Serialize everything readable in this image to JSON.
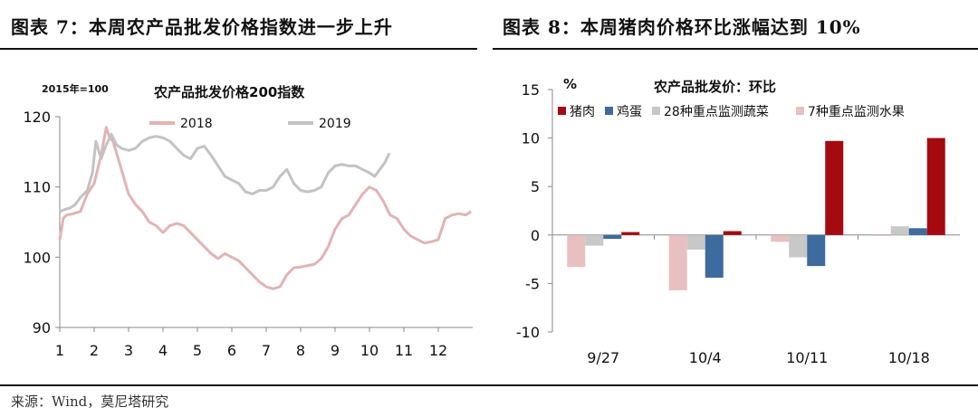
{
  "header": {
    "left_title": "图表 7：本周农产品批发价格指数进一步上升",
    "right_title": "图表 8：本周猪肉价格环比涨幅达到 10%"
  },
  "footer": {
    "source": "来源：Wind，莫尼塔研究"
  },
  "chart_data": [
    {
      "type": "line",
      "title": "农产品批发价格200指数",
      "base_note": "2015年=100",
      "ylim": [
        90,
        120
      ],
      "y_ticks": [
        90,
        100,
        110,
        120
      ],
      "x_ticks": [
        "1",
        "2",
        "3",
        "4",
        "5",
        "6",
        "7",
        "8",
        "9",
        "10",
        "11",
        "12"
      ],
      "xlim": [
        1,
        13
      ],
      "legend_position": "top",
      "colors": {
        "2018": "#e3b3b3",
        "2019": "#c3c3c3"
      },
      "series": [
        {
          "name": "2018",
          "x": [
            1.0,
            1.1,
            1.2,
            1.4,
            1.6,
            1.8,
            2.0,
            2.2,
            2.35,
            2.45,
            2.55,
            2.7,
            2.85,
            3.0,
            3.2,
            3.4,
            3.6,
            3.8,
            4.0,
            4.2,
            4.4,
            4.6,
            4.8,
            5.0,
            5.2,
            5.4,
            5.6,
            5.8,
            6.0,
            6.2,
            6.4,
            6.6,
            6.8,
            7.0,
            7.2,
            7.4,
            7.6,
            7.8,
            8.0,
            8.2,
            8.4,
            8.6,
            8.8,
            9.0,
            9.2,
            9.4,
            9.6,
            9.8,
            10.0,
            10.2,
            10.4,
            10.6,
            10.8,
            11.0,
            11.2,
            11.4,
            11.6,
            11.8,
            12.0,
            12.2,
            12.4,
            12.6,
            12.8,
            12.95
          ],
          "values": [
            102.5,
            105.5,
            106.0,
            106.2,
            106.5,
            109.0,
            110.5,
            114.5,
            118.5,
            117.0,
            116.5,
            114.0,
            111.5,
            109.0,
            107.5,
            106.5,
            105.0,
            104.5,
            103.5,
            104.5,
            104.8,
            104.5,
            103.5,
            102.5,
            101.5,
            100.5,
            99.8,
            100.5,
            100.0,
            99.5,
            98.5,
            97.5,
            96.5,
            95.8,
            95.5,
            95.8,
            97.5,
            98.5,
            98.6,
            98.8,
            99.0,
            99.8,
            101.5,
            104.0,
            105.5,
            106.0,
            107.5,
            109.0,
            110.0,
            109.5,
            108.0,
            106.0,
            105.5,
            104.0,
            103.0,
            102.5,
            102.0,
            102.2,
            102.5,
            105.5,
            106.0,
            106.2,
            106.0,
            106.5
          ]
        },
        {
          "name": "2019",
          "x": [
            1.0,
            1.15,
            1.3,
            1.45,
            1.6,
            1.8,
            1.95,
            2.05,
            2.2,
            2.35,
            2.5,
            2.65,
            2.8,
            3.0,
            3.2,
            3.4,
            3.6,
            3.8,
            4.0,
            4.2,
            4.4,
            4.6,
            4.8,
            5.0,
            5.2,
            5.4,
            5.6,
            5.8,
            6.0,
            6.2,
            6.4,
            6.6,
            6.8,
            7.0,
            7.2,
            7.4,
            7.6,
            7.8,
            8.0,
            8.2,
            8.4,
            8.6,
            8.8,
            9.0,
            9.2,
            9.4,
            9.6,
            9.8,
            10.0,
            10.15,
            10.3,
            10.45,
            10.58
          ],
          "values": [
            106.5,
            106.8,
            107.0,
            107.5,
            108.5,
            109.5,
            112.0,
            116.5,
            114.0,
            116.0,
            117.5,
            116.0,
            115.5,
            115.2,
            115.5,
            116.5,
            117.0,
            117.2,
            117.0,
            116.5,
            115.5,
            114.5,
            114.0,
            115.5,
            115.8,
            114.5,
            113.0,
            111.5,
            111.0,
            110.5,
            109.3,
            109.0,
            109.5,
            109.5,
            110.0,
            111.5,
            112.5,
            110.5,
            109.5,
            109.3,
            109.5,
            110.0,
            112.0,
            113.0,
            113.2,
            113.0,
            113.0,
            112.5,
            112.0,
            111.5,
            112.5,
            113.5,
            114.8
          ]
        }
      ]
    },
    {
      "type": "bar",
      "title": "农产品批发价：环比",
      "ylabel": "%",
      "ylim": [
        -10,
        15
      ],
      "y_ticks": [
        -10,
        -5,
        0,
        5,
        10,
        15
      ],
      "categories": [
        "9/27",
        "10/4",
        "10/11",
        "10/18"
      ],
      "legend_position": "top",
      "series": [
        {
          "name": "猪肉",
          "color": "#a50a10",
          "values": [
            0.3,
            0.4,
            9.7,
            10.0
          ]
        },
        {
          "name": "鸡蛋",
          "color": "#3d6b9e",
          "values": [
            -0.4,
            -4.4,
            -3.2,
            0.7
          ]
        },
        {
          "name": "28种重点监测蔬菜",
          "color": "#c8c8c8",
          "values": [
            -1.1,
            -1.5,
            -2.3,
            0.9
          ]
        },
        {
          "name": "7种重点监测水果",
          "color": "#e8c0c0",
          "values": [
            -3.3,
            -5.7,
            -0.7,
            -0.1
          ]
        }
      ]
    }
  ]
}
